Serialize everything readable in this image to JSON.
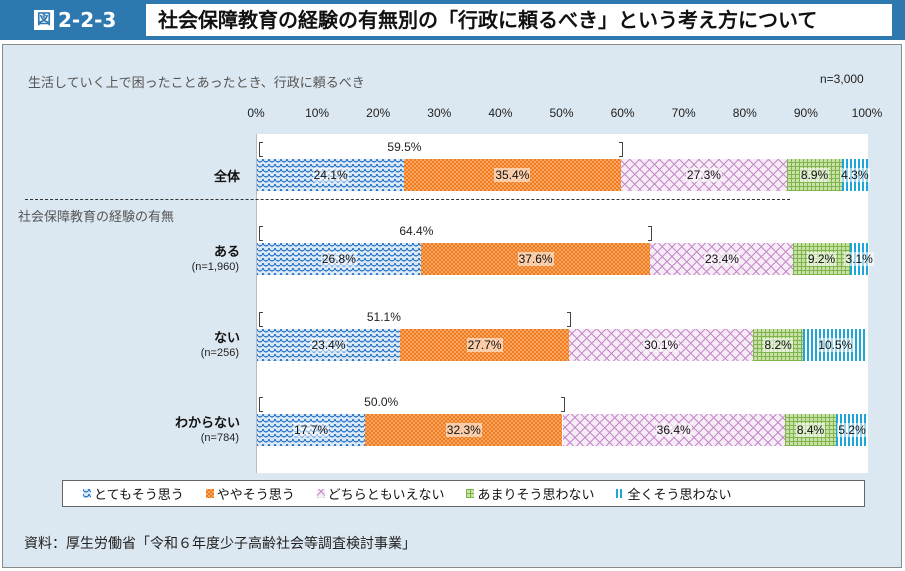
{
  "header": {
    "figure_prefix": "図",
    "figure_number": "2-2-3",
    "title": "社会保障教育の経験の有無別の「行政に頼るべき」という考え方について"
  },
  "question": "生活していく上で困ったことあったとき、行政に頼るべき",
  "sample_total": "n=3,000",
  "group_label": "社会保障教育の経験の有無",
  "source": "資料：厚生労働省「令和６年度少子高齢社会等調査検討事業」",
  "colors": {
    "header_blue": "#2e78b0",
    "panel_bg": "#dce8f1",
    "series": [
      "#2e78c8",
      "#f07a20",
      "#c58ac8",
      "#7db54a",
      "#1fa6d8"
    ]
  },
  "chart_data": {
    "type": "bar",
    "orientation": "horizontal-stacked-100",
    "xlim": [
      0,
      100
    ],
    "x_ticks": [
      "0%",
      "10%",
      "20%",
      "30%",
      "40%",
      "50%",
      "60%",
      "70%",
      "80%",
      "90%",
      "100%"
    ],
    "legend_position": "bottom",
    "series_names": [
      "とてもそう思う",
      "ややそう思う",
      "どちらともいえない",
      "あまりそう思わない",
      "全くそう思わない"
    ],
    "categories": [
      {
        "label": "全体",
        "n": "",
        "values": [
          24.1,
          35.4,
          27.3,
          8.9,
          4.3
        ],
        "bracket_total": "59.5%"
      },
      {
        "label": "ある",
        "n": "(n=1,960)",
        "values": [
          26.8,
          37.6,
          23.4,
          9.2,
          3.1
        ],
        "bracket_total": "64.4%"
      },
      {
        "label": "ない",
        "n": "(n=256)",
        "values": [
          23.4,
          27.7,
          30.1,
          8.2,
          10.5
        ],
        "bracket_total": "51.1%"
      },
      {
        "label": "わからない",
        "n": "(n=784)",
        "values": [
          17.7,
          32.3,
          36.4,
          8.4,
          5.2
        ],
        "bracket_total": "50.0%"
      }
    ]
  }
}
